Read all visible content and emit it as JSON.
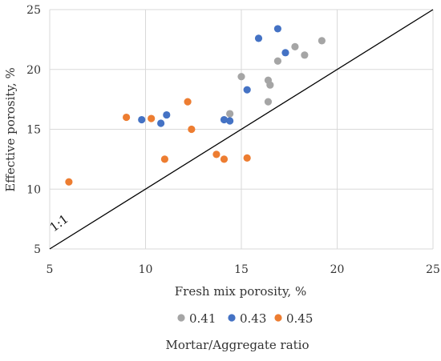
{
  "chart_data": {
    "type": "scatter",
    "title": "",
    "xlabel": "Fresh mix porosity, %",
    "ylabel": "Effective porosity, %",
    "xlim": [
      5,
      25
    ],
    "ylim": [
      5,
      25
    ],
    "x_ticks": [
      "5",
      "10",
      "15",
      "20",
      "25"
    ],
    "y_ticks": [
      "5",
      "10",
      "15",
      "20",
      "25"
    ],
    "grid": true,
    "reference_line": {
      "label": "1:1",
      "from": [
        5,
        5
      ],
      "to": [
        25,
        25
      ],
      "color": "#000000"
    },
    "legend_title": "Mortar/Aggregate ratio",
    "legend_position": "bottom",
    "series": [
      {
        "name": "0.41",
        "color": "#A5A5A5",
        "points": [
          [
            15.0,
            19.4
          ],
          [
            14.4,
            16.3
          ],
          [
            16.4,
            19.1
          ],
          [
            16.5,
            18.7
          ],
          [
            16.4,
            17.3
          ],
          [
            16.9,
            20.7
          ],
          [
            17.8,
            21.9
          ],
          [
            18.3,
            21.2
          ],
          [
            19.2,
            22.4
          ]
        ]
      },
      {
        "name": "0.43",
        "color": "#4472C4",
        "points": [
          [
            9.8,
            15.8
          ],
          [
            10.8,
            15.5
          ],
          [
            11.1,
            16.2
          ],
          [
            14.1,
            15.8
          ],
          [
            14.4,
            15.7
          ],
          [
            15.3,
            18.3
          ],
          [
            15.9,
            22.6
          ],
          [
            16.9,
            23.4
          ],
          [
            17.3,
            21.4
          ]
        ]
      },
      {
        "name": "0.45",
        "color": "#ED7D31",
        "points": [
          [
            6.0,
            10.6
          ],
          [
            9.0,
            16.0
          ],
          [
            10.3,
            15.9
          ],
          [
            11.0,
            12.5
          ],
          [
            12.2,
            17.3
          ],
          [
            12.4,
            15.0
          ],
          [
            13.7,
            12.9
          ],
          [
            14.1,
            12.5
          ],
          [
            15.3,
            12.6
          ]
        ]
      }
    ]
  }
}
